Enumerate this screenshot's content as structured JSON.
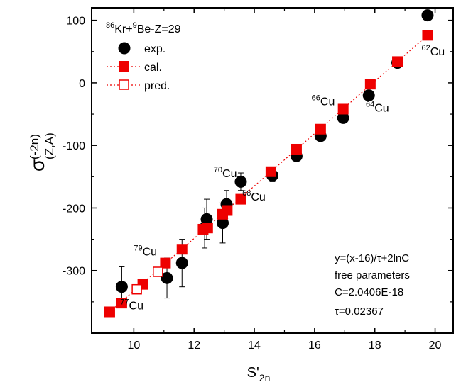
{
  "chart_data": {
    "type": "scatter",
    "title": "",
    "system_label": {
      "pre1": "86",
      "t1": "Kr+",
      "pre2": "9",
      "t2": "Be-Z=29"
    },
    "xlabel": {
      "main": "S'",
      "sub": "2n"
    },
    "ylabel": {
      "main": "σ",
      "sup": "(-2n)",
      "sub": "(Z,A)"
    },
    "xlim": [
      8.6,
      20.6
    ],
    "ylim": [
      -400,
      120
    ],
    "xticks": [
      10,
      12,
      14,
      16,
      18,
      20
    ],
    "yticks": [
      100,
      0,
      -100,
      -200,
      -300
    ],
    "grid": false,
    "legend": {
      "placement": "top-left",
      "entries": [
        {
          "key": "exp",
          "label": "exp."
        },
        {
          "key": "cal",
          "label": "cal."
        },
        {
          "key": "pred",
          "label": "pred."
        }
      ]
    },
    "colors": {
      "exp": "#000000",
      "cal": "#ee0000",
      "pred": "#ee0000",
      "fit_line": "#ee0000"
    },
    "series": [
      {
        "name": "exp.",
        "marker": "filled-circle",
        "x": [
          9.6,
          11.1,
          11.6,
          12.35,
          12.42,
          12.95,
          13.08,
          13.55,
          14.6,
          15.4,
          16.2,
          16.95,
          17.8,
          18.75,
          19.75
        ],
        "y": [
          -326,
          -312,
          -288,
          -232,
          -218,
          -224,
          -194,
          -158,
          -148,
          -117,
          -85,
          -56,
          -20,
          32,
          108
        ],
        "err": [
          32,
          32,
          38,
          32,
          32,
          32,
          22,
          14,
          10,
          6,
          5,
          4,
          4,
          3,
          2
        ]
      },
      {
        "name": "cal.",
        "marker": "filled-square",
        "x": [
          9.2,
          9.6,
          10.3,
          11.05,
          11.6,
          12.3,
          12.45,
          12.95,
          13.1,
          13.55,
          14.55,
          15.4,
          16.2,
          16.95,
          17.85,
          18.75,
          19.75
        ],
        "y": [
          -366,
          -352,
          -322,
          -288,
          -266,
          -234,
          -232,
          -210,
          -204,
          -186,
          -142,
          -106,
          -74,
          -42,
          -2,
          34,
          76
        ]
      },
      {
        "name": "pred.",
        "marker": "open-square",
        "x": [
          10.1,
          10.8
        ],
        "y": [
          -330,
          -302
        ]
      }
    ],
    "fit_line": {
      "x": [
        9.2,
        19.75
      ],
      "y": [
        -366,
        76
      ]
    },
    "annotations": [
      {
        "label": "Cu",
        "mass": "62",
        "x": 19.55,
        "y": 44
      },
      {
        "label": "Cu",
        "mass": "64",
        "x": 17.7,
        "y": -46
      },
      {
        "label": "Cu",
        "mass": "66",
        "x": 15.9,
        "y": -36
      },
      {
        "label": "Cu",
        "mass": "68",
        "x": 13.6,
        "y": -188
      },
      {
        "label": "Cu",
        "mass": "70",
        "x": 12.65,
        "y": -151
      },
      {
        "label": "Cu",
        "mass": "77",
        "x": 9.55,
        "y": -362
      },
      {
        "label": "Cu",
        "mass": "79",
        "x": 10.0,
        "y": -276
      }
    ],
    "formula_box": {
      "lines": [
        "y=(x-16)/τ+2lnC",
        "free parameters",
        "C=2.0406E-18",
        "τ=0.02367"
      ]
    }
  }
}
